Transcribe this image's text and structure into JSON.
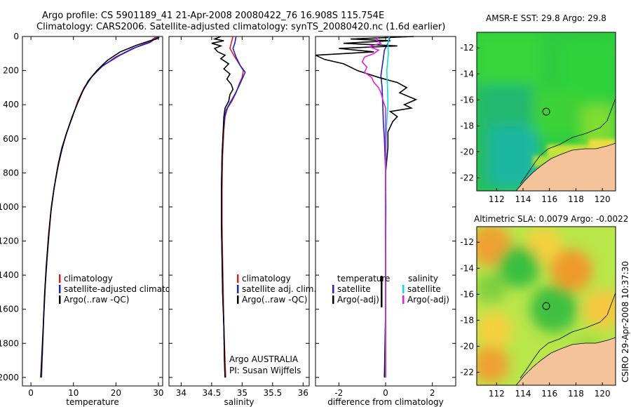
{
  "figure": {
    "title_line1": "Argo profile: CS 5901189_41 21-Apr-2008 20080422_76 16.908S 115.754E",
    "title_line2": "Climatology: CARS2006. Satellite-adjusted climatology: synTS_20080420.nc (1.6d earlier)",
    "side_label": "CSIRO 29-Apr-2008 10:37:30",
    "credit_line1": "Argo AUSTRALIA",
    "credit_line2": "PI: Susan Wijffels"
  },
  "colors": {
    "climatology": "#e02020",
    "satellite": "#1f1fdd",
    "argo": "#000000",
    "argo_adj_salinity": "#e020e0",
    "satellite_salinity": "#00e0e0",
    "land": "#f5c39a"
  },
  "chart_data": [
    {
      "type": "line",
      "id": "temperature",
      "xlabel": "temperature",
      "xlim": [
        -2,
        31
      ],
      "ylim": [
        0,
        2050
      ],
      "x_ticks": [
        0,
        10,
        20,
        30
      ],
      "y_ticks": [
        0,
        200,
        400,
        600,
        800,
        1000,
        1200,
        1400,
        1600,
        1800,
        2000
      ],
      "legend": [
        "climatology",
        "satellite-adjusted climatology",
        "Argo(..raw -QC)"
      ],
      "series": [
        {
          "name": "climatology",
          "color": "#e02020",
          "points": [
            [
              29.5,
              0
            ],
            [
              28,
              30
            ],
            [
              25,
              60
            ],
            [
              21,
              110
            ],
            [
              17,
              170
            ],
            [
              14.5,
              230
            ],
            [
              12.5,
              300
            ],
            [
              11,
              380
            ],
            [
              9.8,
              470
            ],
            [
              8.5,
              560
            ],
            [
              7.4,
              650
            ],
            [
              6.5,
              750
            ],
            [
              5.5,
              880
            ],
            [
              4.8,
              1000
            ],
            [
              4.3,
              1150
            ],
            [
              3.8,
              1300
            ],
            [
              3.4,
              1450
            ],
            [
              3.0,
              1650
            ],
            [
              2.7,
              1850
            ],
            [
              2.5,
              2000
            ]
          ]
        },
        {
          "name": "satellite-adjusted climatology",
          "color": "#1f1fdd",
          "points": [
            [
              30,
              0
            ],
            [
              28,
              35
            ],
            [
              24,
              70
            ],
            [
              20,
              120
            ],
            [
              16.5,
              180
            ],
            [
              14.2,
              240
            ],
            [
              12.4,
              310
            ],
            [
              11,
              390
            ],
            [
              9.7,
              470
            ],
            [
              8.5,
              560
            ],
            [
              7.3,
              650
            ],
            [
              6.4,
              750
            ],
            [
              5.5,
              880
            ],
            [
              4.8,
              1000
            ],
            [
              4.2,
              1150
            ],
            [
              3.8,
              1300
            ],
            [
              3.4,
              1450
            ],
            [
              3.0,
              1650
            ],
            [
              2.7,
              1850
            ],
            [
              2.4,
              2000
            ]
          ]
        },
        {
          "name": "Argo(..raw -QC)",
          "color": "#000000",
          "points": [
            [
              30.2,
              5
            ],
            [
              29.5,
              15
            ],
            [
              28,
              25
            ],
            [
              25,
              50
            ],
            [
              21,
              90
            ],
            [
              18,
              140
            ],
            [
              15.5,
              200
            ],
            [
              13.5,
              260
            ],
            [
              12,
              330
            ],
            [
              10.5,
              420
            ],
            [
              9.3,
              500
            ],
            [
              8.2,
              580
            ],
            [
              7.1,
              680
            ],
            [
              6.2,
              780
            ],
            [
              5.4,
              900
            ],
            [
              4.7,
              1030
            ],
            [
              4.1,
              1180
            ],
            [
              3.6,
              1350
            ],
            [
              3.2,
              1520
            ],
            [
              2.9,
              1700
            ],
            [
              2.6,
              1850
            ],
            [
              2.3,
              2000
            ]
          ]
        }
      ]
    },
    {
      "type": "line",
      "id": "salinity",
      "xlabel": "salinity",
      "xlim": [
        33.8,
        36.1
      ],
      "ylim": [
        0,
        2050
      ],
      "x_ticks": [
        34,
        34.5,
        35,
        35.5,
        36
      ],
      "legend": [
        "climatology",
        "satellite adj. clim.",
        "Argo(..raw -QC)"
      ],
      "series": [
        {
          "name": "climatology",
          "color": "#e02020",
          "points": [
            [
              34.85,
              0
            ],
            [
              34.82,
              40
            ],
            [
              34.8,
              70
            ],
            [
              34.88,
              120
            ],
            [
              34.95,
              160
            ],
            [
              35.02,
              200
            ],
            [
              35.0,
              240
            ],
            [
              34.95,
              280
            ],
            [
              34.9,
              330
            ],
            [
              34.83,
              380
            ],
            [
              34.76,
              420
            ],
            [
              34.72,
              470
            ],
            [
              34.7,
              550
            ],
            [
              34.68,
              700
            ],
            [
              34.67,
              900
            ],
            [
              34.67,
              1100
            ],
            [
              34.68,
              1300
            ],
            [
              34.69,
              1500
            ],
            [
              34.7,
              1700
            ],
            [
              34.72,
              1900
            ],
            [
              34.73,
              2000
            ]
          ]
        },
        {
          "name": "satellite adj. clim.",
          "color": "#1f1fdd",
          "points": [
            [
              34.9,
              0
            ],
            [
              34.88,
              40
            ],
            [
              34.85,
              70
            ],
            [
              34.9,
              120
            ],
            [
              34.97,
              170
            ],
            [
              35.05,
              210
            ],
            [
              35.0,
              250
            ],
            [
              34.95,
              290
            ],
            [
              34.88,
              340
            ],
            [
              34.8,
              390
            ],
            [
              34.74,
              430
            ],
            [
              34.71,
              480
            ],
            [
              34.69,
              560
            ],
            [
              34.67,
              700
            ],
            [
              34.66,
              900
            ],
            [
              34.66,
              1100
            ],
            [
              34.67,
              1300
            ],
            [
              34.68,
              1500
            ],
            [
              34.7,
              1700
            ],
            [
              34.71,
              1900
            ],
            [
              34.72,
              2000
            ]
          ]
        },
        {
          "name": "Argo(..raw -QC)",
          "color": "#000000",
          "points": [
            [
              34.65,
              0
            ],
            [
              34.55,
              15
            ],
            [
              34.7,
              25
            ],
            [
              34.5,
              40
            ],
            [
              34.65,
              55
            ],
            [
              34.55,
              70
            ],
            [
              34.6,
              90
            ],
            [
              34.72,
              110
            ],
            [
              34.65,
              130
            ],
            [
              34.78,
              160
            ],
            [
              34.7,
              190
            ],
            [
              34.8,
              220
            ],
            [
              34.75,
              250
            ],
            [
              34.82,
              280
            ],
            [
              34.85,
              310
            ],
            [
              34.8,
              340
            ],
            [
              34.78,
              380
            ],
            [
              34.72,
              420
            ],
            [
              34.7,
              470
            ],
            [
              34.69,
              550
            ],
            [
              34.67,
              700
            ],
            [
              34.66,
              900
            ],
            [
              34.66,
              1100
            ],
            [
              34.67,
              1300
            ],
            [
              34.68,
              1500
            ],
            [
              34.7,
              1700
            ],
            [
              34.71,
              1900
            ],
            [
              34.72,
              2000
            ]
          ]
        }
      ]
    },
    {
      "type": "line",
      "id": "difference",
      "xlabel": "difference from climatology",
      "xlim": [
        -3,
        3
      ],
      "ylim": [
        0,
        2050
      ],
      "x_ticks": [
        -2,
        0,
        2
      ],
      "legend_left_title": "temperature",
      "legend_right_title": "salinity",
      "legend": [
        "satellite",
        "Argo(-adj)",
        "satellite",
        "Argo(-adj)"
      ],
      "series": [
        {
          "name": "temperature satellite",
          "color": "#1f1fdd",
          "points": [
            [
              0.2,
              0
            ],
            [
              0.1,
              40
            ],
            [
              -0.05,
              80
            ],
            [
              -0.1,
              130
            ],
            [
              -0.15,
              180
            ],
            [
              -0.2,
              230
            ],
            [
              -0.15,
              300
            ],
            [
              -0.12,
              400
            ],
            [
              -0.1,
              500
            ],
            [
              -0.05,
              600
            ],
            [
              0,
              800
            ],
            [
              0,
              1000
            ],
            [
              0,
              1300
            ],
            [
              0,
              1600
            ],
            [
              0,
              2000
            ]
          ]
        },
        {
          "name": "temperature Argo(-adj)",
          "color": "#000000",
          "points": [
            [
              1.2,
              0
            ],
            [
              -1.5,
              15
            ],
            [
              0.2,
              25
            ],
            [
              -1.8,
              40
            ],
            [
              0.5,
              55
            ],
            [
              -2.0,
              70
            ],
            [
              -0.5,
              90
            ],
            [
              -3.0,
              110
            ],
            [
              -2.6,
              135
            ],
            [
              -1.8,
              160
            ],
            [
              -1.2,
              200
            ],
            [
              -0.3,
              240
            ],
            [
              0.5,
              270
            ],
            [
              0.9,
              300
            ],
            [
              0.6,
              330
            ],
            [
              1.3,
              370
            ],
            [
              0.8,
              400
            ],
            [
              1.1,
              420
            ],
            [
              0.2,
              440
            ],
            [
              0.5,
              470
            ],
            [
              0.3,
              500
            ],
            [
              0.1,
              560
            ],
            [
              0.1,
              650
            ],
            [
              0,
              800
            ],
            [
              0,
              1000
            ],
            [
              0,
              1300
            ],
            [
              0,
              1600
            ],
            [
              -0.05,
              2000
            ]
          ]
        },
        {
          "name": "salinity satellite",
          "color": "#00e0e0",
          "points": [
            [
              0.15,
              0
            ],
            [
              0.1,
              50
            ],
            [
              0.12,
              100
            ],
            [
              0.05,
              200
            ],
            [
              0.08,
              300
            ],
            [
              0.1,
              400
            ],
            [
              0.05,
              500
            ],
            [
              0.02,
              600
            ],
            [
              0,
              800
            ],
            [
              0.02,
              1000
            ],
            [
              0,
              1300
            ],
            [
              0,
              1600
            ],
            [
              0,
              2000
            ]
          ]
        },
        {
          "name": "salinity Argo(-adj)",
          "color": "#e020e0",
          "points": [
            [
              -0.3,
              0
            ],
            [
              -0.4,
              20
            ],
            [
              -0.2,
              40
            ],
            [
              -0.7,
              60
            ],
            [
              -0.3,
              80
            ],
            [
              -0.5,
              100
            ],
            [
              -0.9,
              120
            ],
            [
              -1.0,
              150
            ],
            [
              -0.8,
              180
            ],
            [
              -0.9,
              210
            ],
            [
              -0.6,
              240
            ],
            [
              -0.5,
              270
            ],
            [
              -0.3,
              300
            ],
            [
              -0.2,
              330
            ],
            [
              -0.1,
              380
            ],
            [
              0,
              420
            ],
            [
              0,
              480
            ],
            [
              0,
              600
            ],
            [
              0,
              800
            ],
            [
              0,
              1000
            ],
            [
              0,
              1300
            ],
            [
              0,
              1600
            ],
            [
              0,
              2000
            ]
          ]
        }
      ]
    },
    {
      "type": "heatmap",
      "id": "sst_map",
      "title": "AMSR-E SST: 29.8 Argo: 29.8",
      "xlim": [
        110.5,
        121
      ],
      "ylim": [
        -23,
        -10.8
      ],
      "x_ticks": [
        112,
        114,
        116,
        118,
        120
      ],
      "y_ticks": [
        -12,
        -14,
        -16,
        -18,
        -20,
        -22
      ],
      "marker": [
        115.754,
        -16.908
      ]
    },
    {
      "type": "heatmap",
      "id": "sla_map",
      "title": "Altimetric SLA: 0.0079 Argo: -0.0022",
      "xlim": [
        110.5,
        121
      ],
      "ylim": [
        -23,
        -10.8
      ],
      "x_ticks": [
        112,
        114,
        116,
        118,
        120
      ],
      "y_ticks": [
        -12,
        -14,
        -16,
        -18,
        -20,
        -22
      ],
      "marker": [
        115.754,
        -16.908
      ]
    }
  ]
}
